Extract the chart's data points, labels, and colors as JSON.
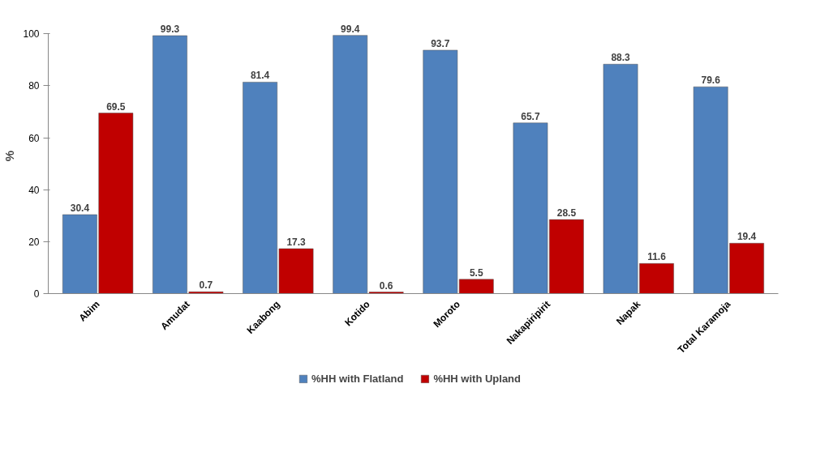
{
  "chart_data": {
    "type": "bar",
    "ylabel": "%",
    "categories": [
      "Abim",
      "Amudat",
      "Kaabong",
      "Kotido",
      "Moroto",
      "Nakapiripirit",
      "Napak",
      "Total Karamoja"
    ],
    "series": [
      {
        "name": "%HH with Flatland",
        "color": "#4f81bd",
        "values": [
          30.4,
          99.3,
          81.4,
          99.4,
          93.7,
          65.7,
          88.3,
          79.6
        ]
      },
      {
        "name": "%HH with Upland",
        "color": "#c00000",
        "values": [
          69.5,
          0.7,
          17.3,
          0.6,
          5.5,
          28.5,
          11.6,
          19.4
        ]
      }
    ],
    "ylim": [
      0,
      100
    ],
    "yticks": [
      0,
      20,
      40,
      60,
      80,
      100
    ],
    "grid": false,
    "legend": "bottom",
    "data_labels": true
  }
}
